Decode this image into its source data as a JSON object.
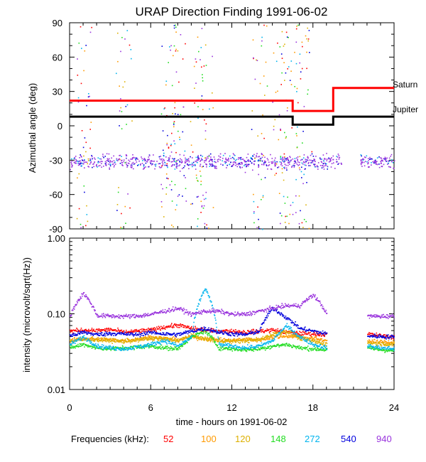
{
  "chart_data": [
    {
      "type": "scatter",
      "title": "URAP Direction Finding  1991-06-02",
      "ylabel": "Azimuthal angle (deg)",
      "xlim": [
        0,
        24
      ],
      "ylim": [
        -90,
        90
      ],
      "yticks": [
        "90",
        "60",
        "30",
        "0",
        "-30",
        "-60",
        "-90"
      ],
      "ytick_values": [
        90,
        60,
        30,
        0,
        -30,
        -60,
        -90
      ],
      "series": [
        {
          "name": "Saturn",
          "color": "#ff0000",
          "steps": [
            [
              0,
              22
            ],
            [
              16.5,
              22
            ],
            [
              16.5,
              13
            ],
            [
              19.5,
              13
            ],
            [
              19.5,
              33
            ],
            [
              24,
              33
            ]
          ]
        },
        {
          "name": "Jupiter",
          "color": "#000000",
          "steps": [
            [
              0,
              8
            ],
            [
              16.5,
              8
            ],
            [
              16.5,
              1
            ],
            [
              19.5,
              1
            ],
            [
              19.5,
              8
            ],
            [
              24,
              8
            ]
          ]
        }
      ],
      "scatter_description": "Scattered direction points across all frequencies, dense band near -30 deg (940 kHz purple), gaps at 20-21.5 h"
    },
    {
      "type": "line",
      "ylabel": "intensity (microvolt/sqrt(Hz))",
      "xlabel": "time - hours on 1991-06-02",
      "xlim": [
        0,
        24
      ],
      "ylim": [
        0.01,
        1.0
      ],
      "yscale": "log",
      "yticks": [
        "1.00",
        "0.10",
        "0.01"
      ],
      "ytick_values": [
        1.0,
        0.1,
        0.01
      ],
      "x": [
        0,
        1,
        2,
        3,
        4,
        5,
        6,
        7,
        8,
        9,
        10,
        11,
        12,
        13,
        14,
        15,
        16,
        17,
        18,
        19,
        20,
        21,
        22,
        23,
        24
      ],
      "series": [
        {
          "name": "52",
          "color": "#ff0000",
          "values": [
            0.06,
            0.062,
            0.061,
            0.063,
            0.058,
            0.06,
            0.062,
            0.068,
            0.072,
            0.065,
            0.062,
            0.06,
            0.06,
            0.058,
            0.06,
            0.062,
            0.058,
            0.056,
            0.055,
            0.054,
            null,
            null,
            0.055,
            0.052,
            0.05
          ]
        },
        {
          "name": "100",
          "color": "#ff9a00",
          "values": [
            0.045,
            0.048,
            0.047,
            0.046,
            0.045,
            0.047,
            0.05,
            0.048,
            0.046,
            0.05,
            0.048,
            0.046,
            0.045,
            0.047,
            0.046,
            0.05,
            0.052,
            0.05,
            0.048,
            0.045,
            null,
            null,
            0.044,
            0.043,
            0.043
          ]
        },
        {
          "name": "120",
          "color": "#ddb000",
          "values": [
            0.044,
            0.047,
            0.046,
            0.045,
            0.044,
            0.046,
            0.048,
            0.047,
            0.045,
            0.052,
            0.047,
            0.045,
            0.044,
            0.045,
            0.046,
            0.055,
            0.06,
            0.048,
            0.044,
            0.04,
            null,
            null,
            0.042,
            0.041,
            0.04
          ]
        },
        {
          "name": "148",
          "color": "#22dd22",
          "values": [
            0.036,
            0.04,
            0.036,
            0.035,
            0.036,
            0.037,
            0.038,
            0.036,
            0.035,
            0.05,
            0.06,
            0.036,
            0.035,
            0.034,
            0.035,
            0.038,
            0.04,
            0.036,
            0.035,
            0.034,
            null,
            null,
            0.036,
            0.034,
            0.033
          ]
        },
        {
          "name": "272",
          "color": "#00b4ee",
          "values": [
            0.04,
            0.05,
            0.038,
            0.036,
            0.035,
            0.037,
            0.04,
            0.045,
            0.038,
            0.05,
            0.22,
            0.04,
            0.038,
            0.036,
            0.038,
            0.045,
            0.07,
            0.05,
            0.04,
            0.036,
            null,
            null,
            0.038,
            0.036,
            0.035
          ]
        },
        {
          "name": "540",
          "color": "#0000dd",
          "values": [
            0.052,
            0.058,
            0.054,
            0.056,
            0.055,
            0.054,
            0.058,
            0.055,
            0.054,
            0.06,
            0.065,
            0.058,
            0.055,
            0.054,
            0.06,
            0.12,
            0.09,
            0.065,
            0.06,
            0.055,
            null,
            null,
            0.052,
            0.051,
            0.05
          ]
        },
        {
          "name": "940",
          "color": "#9933dd",
          "values": [
            0.095,
            0.19,
            0.096,
            0.095,
            0.094,
            0.095,
            0.1,
            0.11,
            0.12,
            0.1,
            0.11,
            0.11,
            0.1,
            0.1,
            0.11,
            0.12,
            0.13,
            0.13,
            0.18,
            0.1,
            null,
            null,
            0.095,
            0.094,
            0.095
          ]
        }
      ]
    }
  ],
  "xticks": [
    "0",
    "6",
    "12",
    "18",
    "24"
  ],
  "xtick_values": [
    0,
    6,
    12,
    18,
    24
  ],
  "legend": {
    "label": "Frequencies (kHz):",
    "entries": [
      {
        "text": "52",
        "color": "#ff0000"
      },
      {
        "text": "100",
        "color": "#ff9a00"
      },
      {
        "text": "120",
        "color": "#ddb000"
      },
      {
        "text": "148",
        "color": "#22dd22"
      },
      {
        "text": "272",
        "color": "#00b4ee"
      },
      {
        "text": "540",
        "color": "#0000dd"
      },
      {
        "text": "940",
        "color": "#9933dd"
      }
    ]
  }
}
